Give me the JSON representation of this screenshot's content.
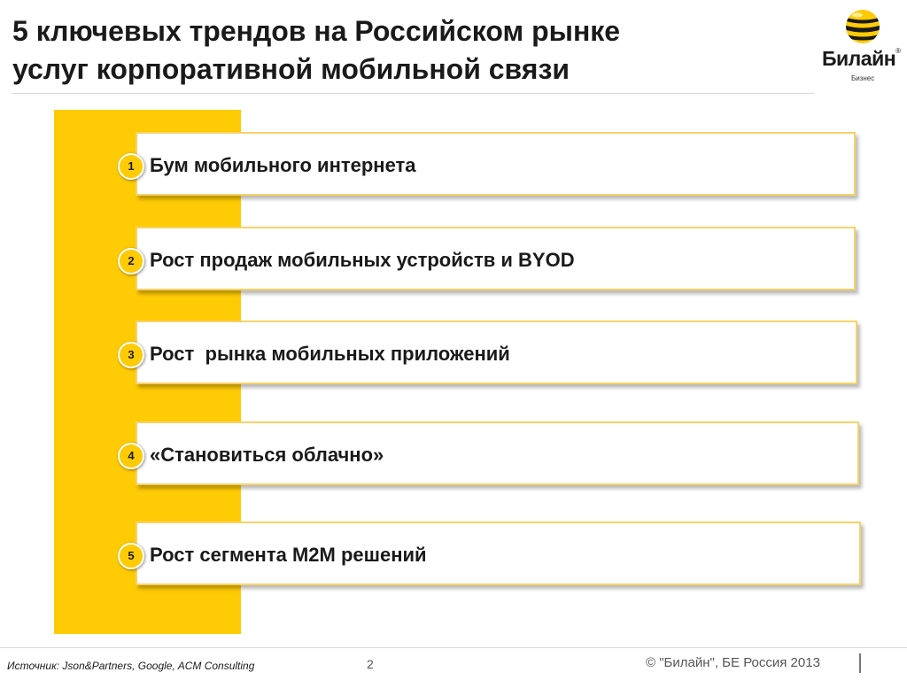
{
  "slide": {
    "title_line1": "5 ключевых трендов на Российском рынке",
    "title_line2": "услуг корпоративной мобильной связи"
  },
  "logo": {
    "brand": "Билайн",
    "registered_mark": "®",
    "sub": "Бизнес",
    "icon": "beeline-striped-ball-icon"
  },
  "trends": [
    {
      "number": "1",
      "label": "Бум мобильного интернета"
    },
    {
      "number": "2",
      "label": "Рост продаж мобильных устройств и BYOD"
    },
    {
      "number": "3",
      "label": "Рост  рынка мобильных приложений"
    },
    {
      "number": "4",
      "label": "«Становиться облачно»"
    },
    {
      "number": "5",
      "label": "Рост сегмента M2M решений"
    }
  ],
  "footer": {
    "source": "Источник: Json&Partners, Google, ACM Consulting",
    "page_number": "2",
    "copyright": "© \"Билайн\", БЕ Россия 2013"
  },
  "colors": {
    "accent_yellow": "#ffcb05",
    "card_border": "#f7d268",
    "text_dark": "#1a1a1a"
  }
}
